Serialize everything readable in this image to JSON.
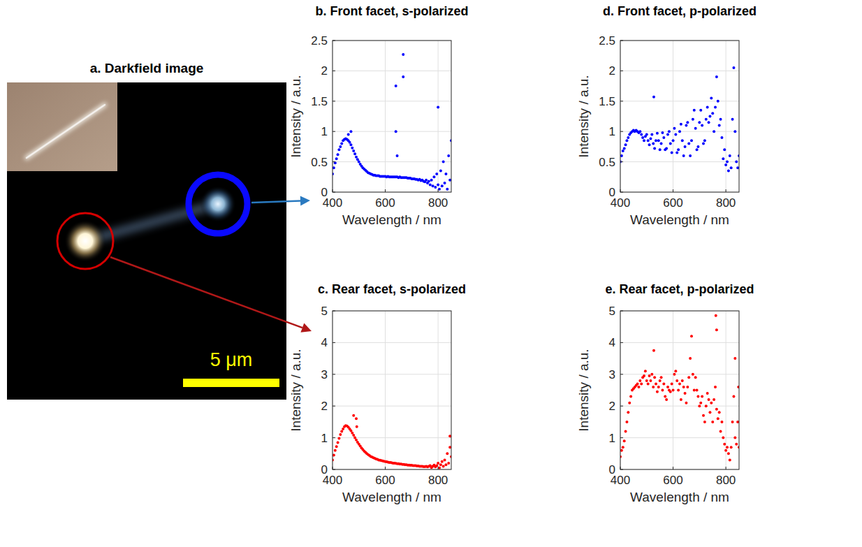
{
  "image_panel": {
    "title": "a. Darkfield image",
    "scale_bar": "5 μm"
  },
  "chart_data": [
    {
      "type": "scatter",
      "title": "b. Front facet, s-polarized",
      "x_label": "Wavelength / nm",
      "y_label": "Intensity / a.u.",
      "color": "#0000ff",
      "marker": "dot",
      "grid": true,
      "xlim": [
        400,
        850
      ],
      "ylim": [
        0,
        2.5
      ],
      "xticks": [
        400,
        600,
        800
      ],
      "yticks": [
        0,
        0.5,
        1,
        1.5,
        2,
        2.5
      ],
      "x": [
        400,
        405,
        410,
        415,
        420,
        425,
        430,
        435,
        440,
        445,
        450,
        455,
        460,
        465,
        470,
        475,
        480,
        485,
        490,
        495,
        500,
        505,
        510,
        515,
        520,
        525,
        530,
        535,
        540,
        545,
        550,
        555,
        560,
        565,
        570,
        575,
        580,
        585,
        590,
        595,
        600,
        605,
        610,
        615,
        620,
        625,
        630,
        635,
        640,
        645,
        650,
        655,
        660,
        665,
        670,
        675,
        680,
        685,
        690,
        695,
        700,
        705,
        710,
        715,
        720,
        725,
        730,
        735,
        740,
        745,
        750,
        755,
        760,
        765,
        770,
        775,
        780,
        785,
        790,
        795,
        800,
        805,
        810,
        815,
        820,
        825,
        830,
        835,
        840,
        845,
        850,
        460,
        470,
        640,
        640,
        645,
        668,
        668,
        800
      ],
      "values": [
        0.3,
        0.4,
        0.48,
        0.55,
        0.62,
        0.7,
        0.75,
        0.8,
        0.85,
        0.87,
        0.88,
        0.87,
        0.85,
        0.82,
        0.78,
        0.73,
        0.68,
        0.63,
        0.58,
        0.54,
        0.5,
        0.46,
        0.43,
        0.4,
        0.38,
        0.36,
        0.34,
        0.32,
        0.31,
        0.3,
        0.29,
        0.28,
        0.28,
        0.27,
        0.27,
        0.27,
        0.26,
        0.26,
        0.26,
        0.26,
        0.26,
        0.25,
        0.26,
        0.25,
        0.25,
        0.25,
        0.25,
        0.25,
        0.25,
        0.25,
        0.24,
        0.25,
        0.24,
        0.24,
        0.24,
        0.24,
        0.24,
        0.23,
        0.23,
        0.23,
        0.22,
        0.22,
        0.22,
        0.21,
        0.21,
        0.2,
        0.21,
        0.19,
        0.2,
        0.18,
        0.17,
        0.2,
        0.15,
        0.18,
        0.12,
        0.2,
        0.1,
        0.25,
        0.08,
        0.3,
        0.12,
        0.05,
        0.35,
        0.1,
        0.5,
        0.15,
        0.3,
        0.05,
        0.6,
        0.2,
        0.85,
        0.95,
        1.0,
        1.75,
        1.0,
        0.6,
        2.27,
        1.9,
        1.4
      ]
    },
    {
      "type": "scatter",
      "title": "c. Rear facet, s-polarized",
      "x_label": "Wavelength / nm",
      "y_label": "Intensity / a.u.",
      "color": "#ff0000",
      "marker": "dot",
      "grid": true,
      "xlim": [
        400,
        850
      ],
      "ylim": [
        0,
        5
      ],
      "xticks": [
        400,
        600,
        800
      ],
      "yticks": [
        0,
        1,
        2,
        3,
        4,
        5
      ],
      "x": [
        400,
        405,
        410,
        415,
        420,
        425,
        430,
        435,
        440,
        445,
        450,
        455,
        460,
        465,
        470,
        475,
        480,
        485,
        490,
        495,
        500,
        505,
        510,
        515,
        520,
        525,
        530,
        535,
        540,
        545,
        550,
        555,
        560,
        565,
        570,
        575,
        580,
        585,
        590,
        595,
        600,
        605,
        610,
        615,
        620,
        625,
        630,
        635,
        640,
        645,
        650,
        655,
        660,
        665,
        670,
        675,
        680,
        685,
        690,
        695,
        700,
        705,
        710,
        715,
        720,
        725,
        730,
        735,
        740,
        745,
        750,
        755,
        760,
        765,
        770,
        775,
        780,
        785,
        790,
        795,
        800,
        805,
        810,
        815,
        820,
        825,
        830,
        835,
        840,
        845,
        850,
        480,
        490,
        492,
        845
      ],
      "values": [
        0.3,
        0.45,
        0.6,
        0.72,
        0.85,
        0.98,
        1.1,
        1.2,
        1.28,
        1.35,
        1.38,
        1.37,
        1.33,
        1.28,
        1.22,
        1.15,
        1.08,
        1.0,
        0.93,
        0.86,
        0.8,
        0.74,
        0.68,
        0.63,
        0.58,
        0.54,
        0.5,
        0.47,
        0.44,
        0.41,
        0.39,
        0.37,
        0.35,
        0.33,
        0.32,
        0.3,
        0.29,
        0.28,
        0.27,
        0.26,
        0.25,
        0.24,
        0.23,
        0.22,
        0.22,
        0.21,
        0.2,
        0.2,
        0.19,
        0.18,
        0.18,
        0.17,
        0.17,
        0.16,
        0.16,
        0.15,
        0.15,
        0.14,
        0.14,
        0.13,
        0.13,
        0.12,
        0.12,
        0.12,
        0.11,
        0.11,
        0.1,
        0.1,
        0.1,
        0.09,
        0.09,
        0.1,
        0.08,
        0.1,
        0.12,
        0.06,
        0.1,
        0.14,
        0.08,
        0.12,
        0.2,
        0.05,
        0.15,
        0.25,
        0.1,
        0.3,
        0.15,
        0.5,
        0.2,
        0.7,
        0.4,
        1.7,
        1.6,
        1.35,
        1.05
      ]
    },
    {
      "type": "scatter",
      "title": "d. Front facet, p-polarized",
      "x_label": "Wavelength / nm",
      "y_label": "Intensity / a.u.",
      "color": "#0000ff",
      "marker": "dot",
      "grid": true,
      "xlim": [
        400,
        850
      ],
      "ylim": [
        0,
        2.5
      ],
      "xticks": [
        400,
        600,
        800
      ],
      "yticks": [
        0,
        0.5,
        1,
        1.5,
        2,
        2.5
      ],
      "x": [
        400,
        405,
        410,
        415,
        420,
        425,
        430,
        435,
        440,
        445,
        450,
        455,
        460,
        465,
        470,
        475,
        480,
        485,
        490,
        495,
        500,
        505,
        510,
        515,
        520,
        525,
        530,
        535,
        540,
        545,
        550,
        555,
        560,
        565,
        570,
        575,
        580,
        585,
        590,
        595,
        600,
        605,
        610,
        615,
        620,
        625,
        630,
        635,
        640,
        645,
        650,
        655,
        660,
        665,
        670,
        675,
        680,
        685,
        690,
        695,
        700,
        705,
        710,
        715,
        720,
        725,
        730,
        735,
        740,
        745,
        750,
        755,
        760,
        765,
        770,
        775,
        780,
        785,
        790,
        795,
        800,
        805,
        810,
        815,
        820,
        825,
        830,
        835,
        840,
        845,
        850,
        527
      ],
      "values": [
        0.5,
        0.6,
        0.68,
        0.72,
        0.78,
        0.85,
        0.9,
        0.95,
        0.98,
        1.0,
        1.02,
        1.0,
        1.02,
        1.0,
        0.98,
        1.0,
        0.95,
        0.9,
        0.85,
        0.92,
        0.95,
        0.85,
        0.78,
        0.88,
        0.95,
        0.8,
        0.72,
        0.85,
        0.97,
        0.85,
        0.7,
        0.8,
        0.98,
        0.9,
        0.7,
        0.72,
        0.95,
        1.0,
        0.8,
        0.65,
        0.85,
        1.05,
        0.95,
        0.65,
        0.7,
        1.0,
        1.12,
        0.85,
        0.6,
        0.75,
        1.1,
        1.15,
        0.8,
        0.6,
        0.85,
        1.2,
        1.35,
        1.05,
        0.7,
        0.75,
        1.15,
        1.35,
        1.1,
        0.8,
        0.85,
        1.2,
        1.4,
        1.15,
        1.25,
        1.55,
        1.3,
        1.0,
        1.4,
        1.9,
        1.5,
        1.1,
        1.2,
        0.9,
        0.55,
        0.7,
        0.45,
        0.5,
        0.35,
        0.6,
        0.4,
        1.2,
        2.05,
        1.0,
        0.5,
        0.4,
        0.6,
        1.57
      ]
    },
    {
      "type": "scatter",
      "title": "e. Rear facet, p-polarized",
      "x_label": "Wavelength / nm",
      "y_label": "Intensity / a.u.",
      "color": "#ff0000",
      "marker": "dot",
      "grid": true,
      "xlim": [
        400,
        850
      ],
      "ylim": [
        0,
        5
      ],
      "xticks": [
        400,
        600,
        800
      ],
      "yticks": [
        0,
        1,
        2,
        3,
        4,
        5
      ],
      "x": [
        400,
        405,
        410,
        415,
        420,
        425,
        430,
        435,
        440,
        445,
        450,
        455,
        460,
        465,
        470,
        475,
        480,
        485,
        490,
        495,
        500,
        505,
        510,
        515,
        520,
        525,
        530,
        535,
        540,
        545,
        550,
        555,
        560,
        565,
        570,
        575,
        580,
        585,
        590,
        595,
        600,
        605,
        610,
        615,
        620,
        625,
        630,
        635,
        640,
        645,
        650,
        655,
        660,
        665,
        670,
        675,
        680,
        685,
        690,
        695,
        700,
        705,
        710,
        715,
        720,
        725,
        730,
        735,
        740,
        745,
        750,
        755,
        760,
        765,
        770,
        775,
        780,
        785,
        790,
        795,
        800,
        805,
        810,
        815,
        820,
        825,
        830,
        835,
        840,
        845,
        850,
        527,
        762,
        765,
        835,
        848
      ],
      "values": [
        0.4,
        0.6,
        0.7,
        0.9,
        1.2,
        1.5,
        1.8,
        2.1,
        2.3,
        2.5,
        2.55,
        2.6,
        2.65,
        2.7,
        2.6,
        2.8,
        2.7,
        2.9,
        2.95,
        3.1,
        2.8,
        2.7,
        2.95,
        2.8,
        3.0,
        2.6,
        2.9,
        2.7,
        2.45,
        2.6,
        2.8,
        2.9,
        2.5,
        2.7,
        2.3,
        2.2,
        2.6,
        2.5,
        2.45,
        2.7,
        2.5,
        3.0,
        3.1,
        2.8,
        2.5,
        2.7,
        2.2,
        2.8,
        2.6,
        2.4,
        2.1,
        2.6,
        2.9,
        3.5,
        4.2,
        3.0,
        2.5,
        2.9,
        2.5,
        2.3,
        2.0,
        2.1,
        2.3,
        1.7,
        1.5,
        2.0,
        2.4,
        2.2,
        1.8,
        2.1,
        1.5,
        2.2,
        2.6,
        1.9,
        1.6,
        1.8,
        1.2,
        1.5,
        1.0,
        0.8,
        0.6,
        0.7,
        0.5,
        0.3,
        0.7,
        1.5,
        2.3,
        1.0,
        0.8,
        1.5,
        0.7,
        3.75,
        4.85,
        4.4,
        3.5,
        2.6
      ]
    }
  ]
}
